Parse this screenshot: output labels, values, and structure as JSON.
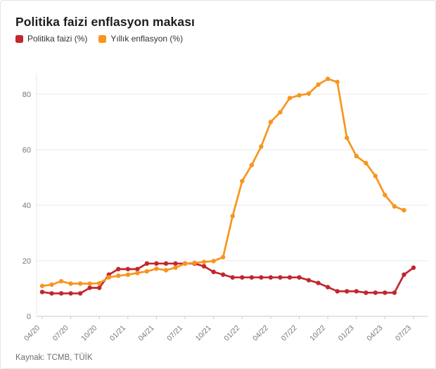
{
  "title": "Politika faizi enflasyon makası",
  "legend": [
    {
      "label": "Politika faizi (%)",
      "color": "#c1272d"
    },
    {
      "label": "Yıllık enflasyon (%)",
      "color": "#f8951d"
    }
  ],
  "source": "Kaynak: TCMB, TÜİK",
  "axis_colors": {
    "grid": "#e8e8e8",
    "baseline": "#c8c8c8",
    "tick_text": "#767676"
  },
  "chart_data": {
    "type": "line",
    "title": "Politika faizi enflasyon makası",
    "x": [
      "04/20",
      "05/20",
      "06/20",
      "07/20",
      "08/20",
      "09/20",
      "10/20",
      "11/20",
      "12/20",
      "01/21",
      "02/21",
      "03/21",
      "04/21",
      "05/21",
      "06/21",
      "07/21",
      "08/21",
      "09/21",
      "10/21",
      "11/21",
      "12/21",
      "01/22",
      "02/22",
      "03/22",
      "04/22",
      "05/22",
      "06/22",
      "07/22",
      "08/22",
      "09/22",
      "10/22",
      "11/22",
      "12/22",
      "01/23",
      "02/23",
      "03/23",
      "04/23",
      "05/23",
      "06/23",
      "07/23"
    ],
    "x_tick_labels": [
      "04/20",
      "07/20",
      "10/20",
      "01/21",
      "04/21",
      "07/21",
      "10/21",
      "01/22",
      "04/22",
      "07/22",
      "10/22",
      "01/23",
      "04/23",
      "07/23"
    ],
    "y_ticks": [
      0,
      20,
      40,
      60,
      80
    ],
    "ylim": [
      0,
      90
    ],
    "grid": "horizontal",
    "legend_position": "top-left",
    "series": [
      {
        "name": "Politika faizi (%)",
        "color": "#c1272d",
        "values": [
          8.75,
          8.25,
          8.25,
          8.25,
          8.25,
          10.25,
          10.25,
          15,
          17,
          17,
          17,
          19,
          19,
          19,
          19,
          19,
          19,
          18,
          16,
          15,
          14,
          14,
          14,
          14,
          14,
          14,
          14,
          14,
          13,
          12,
          10.5,
          9,
          9,
          9,
          8.5,
          8.5,
          8.5,
          8.5,
          15,
          17.5
        ]
      },
      {
        "name": "Yıllık enflasyon (%)",
        "color": "#f8951d",
        "values": [
          10.94,
          11.39,
          12.62,
          11.76,
          11.77,
          11.75,
          11.89,
          14.03,
          14.6,
          14.97,
          15.61,
          16.19,
          17.14,
          16.59,
          17.53,
          18.95,
          19.25,
          19.58,
          19.89,
          21.31,
          36.08,
          48.69,
          54.44,
          61.14,
          69.97,
          73.5,
          78.62,
          79.6,
          80.21,
          83.45,
          85.51,
          84.39,
          64.27,
          57.68,
          55.18,
          50.51,
          43.68,
          39.59,
          38.21,
          null
        ]
      }
    ]
  }
}
